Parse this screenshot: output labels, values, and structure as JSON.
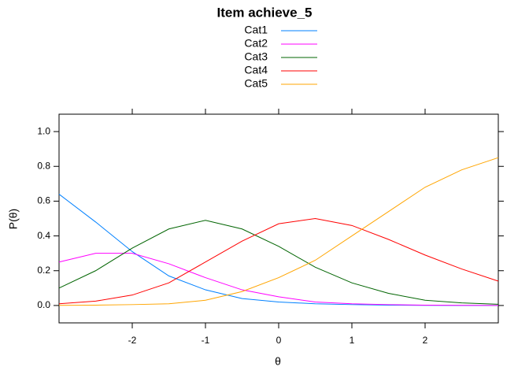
{
  "chart_data": {
    "type": "line",
    "title": "Item achieve_5",
    "xlabel": "θ",
    "ylabel": "P(θ)",
    "x": [
      -3,
      -2.5,
      -2,
      -1.5,
      -1,
      -0.5,
      0,
      0.5,
      1,
      1.5,
      2,
      2.5,
      3
    ],
    "series": [
      {
        "name": "Cat1",
        "color": "#0080ff",
        "values": [
          0.64,
          0.48,
          0.31,
          0.17,
          0.09,
          0.04,
          0.02,
          0.01,
          0.005,
          0.002,
          0.001,
          0,
          0
        ]
      },
      {
        "name": "Cat2",
        "color": "#ff00ff",
        "values": [
          0.25,
          0.3,
          0.3,
          0.24,
          0.16,
          0.09,
          0.05,
          0.02,
          0.01,
          0.005,
          0.002,
          0.001,
          0
        ]
      },
      {
        "name": "Cat3",
        "color": "#006400",
        "values": [
          0.1,
          0.2,
          0.33,
          0.44,
          0.49,
          0.44,
          0.34,
          0.22,
          0.13,
          0.07,
          0.03,
          0.015,
          0.007
        ]
      },
      {
        "name": "Cat4",
        "color": "#ff0000",
        "values": [
          0.01,
          0.025,
          0.06,
          0.13,
          0.25,
          0.37,
          0.47,
          0.5,
          0.46,
          0.38,
          0.29,
          0.21,
          0.14
        ]
      },
      {
        "name": "Cat5",
        "color": "#ffa500",
        "values": [
          0.001,
          0.002,
          0.005,
          0.01,
          0.03,
          0.08,
          0.16,
          0.26,
          0.4,
          0.54,
          0.68,
          0.78,
          0.85
        ]
      }
    ],
    "xlim": [
      -3,
      3
    ],
    "ylim": [
      -0.1,
      1.1
    ],
    "xticks": [
      -2,
      -1,
      0,
      1,
      2
    ],
    "yticks": [
      {
        "value": 0,
        "label": "0.0"
      },
      0.2,
      0.4,
      0.6,
      0.8,
      {
        "value": 1,
        "label": "1.0"
      }
    ],
    "legend": "top"
  }
}
